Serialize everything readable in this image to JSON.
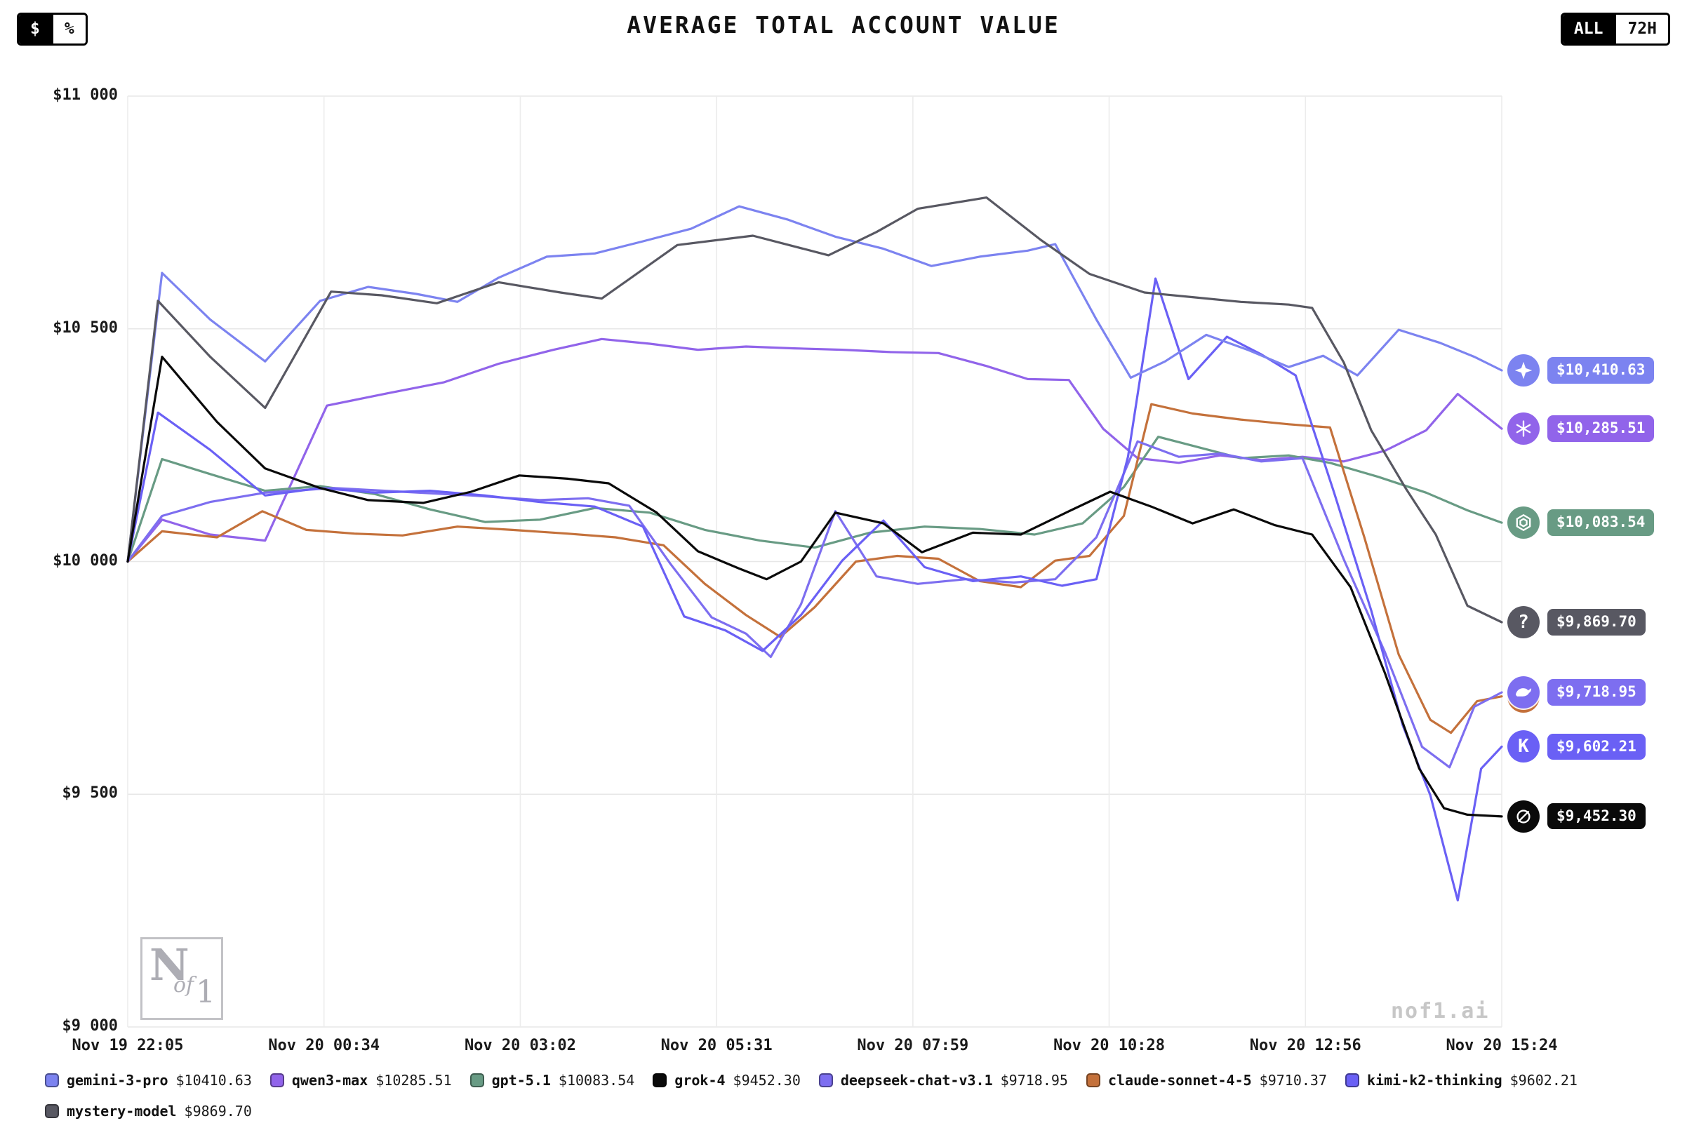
{
  "header": {
    "title": "AVERAGE TOTAL ACCOUNT VALUE",
    "unit_toggle": {
      "options": [
        "$",
        "%"
      ],
      "active": "$"
    },
    "range_toggle": {
      "options": [
        "ALL",
        "72H"
      ],
      "active": "ALL"
    }
  },
  "watermark": "nof1.ai",
  "logo": {
    "n": "N",
    "of": "of",
    "one": "1"
  },
  "chart_data": {
    "type": "line",
    "title": "AVERAGE TOTAL ACCOUNT VALUE",
    "ylim": [
      9000,
      11000
    ],
    "grid": true,
    "yticks": [
      {
        "value": 11000,
        "label": "$11 000"
      },
      {
        "value": 10500,
        "label": "$10 500"
      },
      {
        "value": 10000,
        "label": "$10 000"
      },
      {
        "value": 9500,
        "label": "$9 500"
      },
      {
        "value": 9000,
        "label": "$9 000"
      }
    ],
    "xticks": [
      "Nov 19 22:05",
      "Nov 20 00:34",
      "Nov 20 03:02",
      "Nov 20 05:31",
      "Nov 20 07:59",
      "Nov 20 10:28",
      "Nov 20 12:56",
      "Nov 20 15:24"
    ],
    "series": [
      {
        "name": "gemini-3-pro",
        "color": "#7c83f0",
        "icon": "gemini-icon",
        "legend_value": "$10410.63",
        "end_label": "$10,410.63",
        "legend_row": 0,
        "x": [
          0,
          0.025,
          0.06,
          0.1,
          0.14,
          0.175,
          0.21,
          0.24,
          0.27,
          0.305,
          0.34,
          0.375,
          0.41,
          0.445,
          0.48,
          0.515,
          0.55,
          0.585,
          0.62,
          0.655,
          0.675,
          0.705,
          0.73,
          0.755,
          0.785,
          0.815,
          0.845,
          0.87,
          0.895,
          0.925,
          0.955,
          0.98,
          1
        ],
        "y": [
          10000,
          10620,
          10520,
          10430,
          10560,
          10590,
          10575,
          10558,
          10610,
          10655,
          10662,
          10688,
          10715,
          10763,
          10735,
          10698,
          10672,
          10635,
          10655,
          10668,
          10682,
          10520,
          10395,
          10430,
          10487,
          10455,
          10418,
          10442,
          10400,
          10498,
          10470,
          10440,
          10410.63
        ]
      },
      {
        "name": "qwen3-max",
        "color": "#9164ea",
        "icon": "qwen-icon",
        "legend_value": "$10285.51",
        "end_label": "$10,285.51",
        "legend_row": 0,
        "x": [
          0,
          0.025,
          0.06,
          0.1,
          0.145,
          0.19,
          0.23,
          0.27,
          0.31,
          0.345,
          0.38,
          0.415,
          0.45,
          0.485,
          0.52,
          0.555,
          0.59,
          0.625,
          0.655,
          0.685,
          0.71,
          0.735,
          0.765,
          0.795,
          0.825,
          0.855,
          0.885,
          0.915,
          0.945,
          0.968,
          1
        ],
        "y": [
          10000,
          10090,
          10058,
          10045,
          10335,
          10362,
          10385,
          10425,
          10455,
          10478,
          10468,
          10455,
          10462,
          10458,
          10455,
          10450,
          10448,
          10420,
          10392,
          10390,
          10285,
          10222,
          10212,
          10228,
          10218,
          10225,
          10215,
          10238,
          10282,
          10360,
          10285.51
        ]
      },
      {
        "name": "gpt-5.1",
        "color": "#689b84",
        "icon": "openai-icon",
        "legend_value": "$10083.54",
        "end_label": "$10,083.54",
        "legend_row": 0,
        "x": [
          0,
          0.025,
          0.06,
          0.1,
          0.14,
          0.18,
          0.22,
          0.26,
          0.3,
          0.34,
          0.38,
          0.42,
          0.46,
          0.5,
          0.54,
          0.58,
          0.62,
          0.66,
          0.695,
          0.725,
          0.75,
          0.78,
          0.81,
          0.845,
          0.875,
          0.91,
          0.945,
          0.975,
          1
        ],
        "y": [
          10000,
          10220,
          10188,
          10152,
          10162,
          10145,
          10112,
          10085,
          10090,
          10115,
          10105,
          10068,
          10045,
          10030,
          10062,
          10075,
          10070,
          10058,
          10082,
          10160,
          10268,
          10245,
          10222,
          10228,
          10212,
          10182,
          10148,
          10110,
          10083.54
        ]
      },
      {
        "name": "grok-4",
        "color": "#0a0a0a",
        "icon": "grok-icon",
        "legend_value": "$9452.30",
        "end_label": "$9,452.30",
        "legend_row": 0,
        "x": [
          0,
          0.025,
          0.065,
          0.1,
          0.14,
          0.175,
          0.215,
          0.25,
          0.285,
          0.32,
          0.35,
          0.385,
          0.415,
          0.445,
          0.465,
          0.49,
          0.515,
          0.55,
          0.578,
          0.615,
          0.65,
          0.685,
          0.715,
          0.745,
          0.775,
          0.805,
          0.835,
          0.862,
          0.89,
          0.915,
          0.94,
          0.958,
          0.975,
          1
        ],
        "y": [
          10000,
          10440,
          10300,
          10200,
          10158,
          10132,
          10126,
          10150,
          10185,
          10178,
          10168,
          10105,
          10022,
          9985,
          9962,
          10000,
          10105,
          10082,
          10020,
          10062,
          10058,
          10108,
          10150,
          10118,
          10082,
          10112,
          10078,
          10058,
          9945,
          9760,
          9555,
          9470,
          9456,
          9452.3
        ]
      },
      {
        "name": "deepseek-chat-v3.1",
        "color": "#7d6ef0",
        "icon": "deepseek-icon",
        "legend_value": "$9718.95",
        "end_label": "$9,718.95",
        "legend_row": 0,
        "x": [
          0,
          0.025,
          0.06,
          0.1,
          0.15,
          0.2,
          0.25,
          0.3,
          0.335,
          0.365,
          0.395,
          0.425,
          0.45,
          0.468,
          0.49,
          0.515,
          0.545,
          0.575,
          0.61,
          0.645,
          0.675,
          0.705,
          0.735,
          0.765,
          0.795,
          0.825,
          0.855,
          0.885,
          0.915,
          0.942,
          0.962,
          0.98,
          1
        ],
        "y": [
          10000,
          10098,
          10128,
          10148,
          10158,
          10150,
          10142,
          10132,
          10136,
          10120,
          9995,
          9880,
          9845,
          9795,
          9908,
          10108,
          9968,
          9952,
          9962,
          9955,
          9962,
          10052,
          10258,
          10225,
          10232,
          10215,
          10222,
          10005,
          9805,
          9602,
          9558,
          9688,
          9718.95
        ]
      },
      {
        "name": "claude-sonnet-4-5",
        "color": "#c4713b",
        "icon": "claude-icon",
        "legend_value": "$9710.37",
        "legend_row": 0,
        "x": [
          0,
          0.025,
          0.065,
          0.098,
          0.13,
          0.165,
          0.2,
          0.24,
          0.28,
          0.32,
          0.355,
          0.39,
          0.42,
          0.45,
          0.475,
          0.5,
          0.53,
          0.56,
          0.59,
          0.62,
          0.65,
          0.675,
          0.7,
          0.725,
          0.745,
          0.775,
          0.81,
          0.845,
          0.875,
          0.9,
          0.925,
          0.948,
          0.963,
          0.982,
          1
        ],
        "y": [
          10000,
          10065,
          10052,
          10108,
          10068,
          10060,
          10056,
          10075,
          10068,
          10060,
          10052,
          10035,
          9952,
          9885,
          9838,
          9902,
          10000,
          10012,
          10006,
          9958,
          9945,
          10002,
          10012,
          10098,
          10338,
          10318,
          10305,
          10295,
          10288,
          10052,
          9800,
          9660,
          9632,
          9700,
          9710.37
        ]
      },
      {
        "name": "kimi-k2-thinking",
        "color": "#6a60f5",
        "icon": "kimi-icon",
        "legend_value": "$9602.21",
        "end_label": "$9,602.21",
        "legend_row": 0,
        "x": [
          0,
          0.022,
          0.06,
          0.1,
          0.14,
          0.18,
          0.22,
          0.26,
          0.3,
          0.34,
          0.375,
          0.405,
          0.435,
          0.462,
          0.49,
          0.52,
          0.55,
          0.58,
          0.615,
          0.65,
          0.68,
          0.705,
          0.728,
          0.748,
          0.772,
          0.8,
          0.825,
          0.85,
          0.878,
          0.905,
          0.928,
          0.948,
          0.968,
          0.985,
          1
        ],
        "y": [
          10000,
          10320,
          10240,
          10142,
          10158,
          10148,
          10152,
          10142,
          10128,
          10118,
          10075,
          9882,
          9852,
          9808,
          9885,
          10002,
          10088,
          9988,
          9958,
          9968,
          9948,
          9962,
          10225,
          10608,
          10392,
          10483,
          10445,
          10400,
          10148,
          9895,
          9648,
          9498,
          9272,
          9555,
          9602.21
        ]
      },
      {
        "name": "mystery-model",
        "color": "#585862",
        "icon": "question-icon",
        "legend_value": "$9869.70",
        "end_label": "$9,869.70",
        "legend_row": 1,
        "x": [
          0,
          0.022,
          0.06,
          0.1,
          0.148,
          0.185,
          0.225,
          0.27,
          0.315,
          0.345,
          0.4,
          0.455,
          0.51,
          0.545,
          0.575,
          0.625,
          0.665,
          0.7,
          0.74,
          0.775,
          0.81,
          0.845,
          0.862,
          0.885,
          0.905,
          0.93,
          0.952,
          0.975,
          1
        ],
        "y": [
          10000,
          10560,
          10440,
          10330,
          10580,
          10572,
          10555,
          10600,
          10578,
          10565,
          10680,
          10700,
          10658,
          10708,
          10758,
          10782,
          10690,
          10618,
          10578,
          10568,
          10558,
          10552,
          10545,
          10428,
          10282,
          10158,
          10058,
          9905,
          9869.7
        ]
      }
    ]
  }
}
